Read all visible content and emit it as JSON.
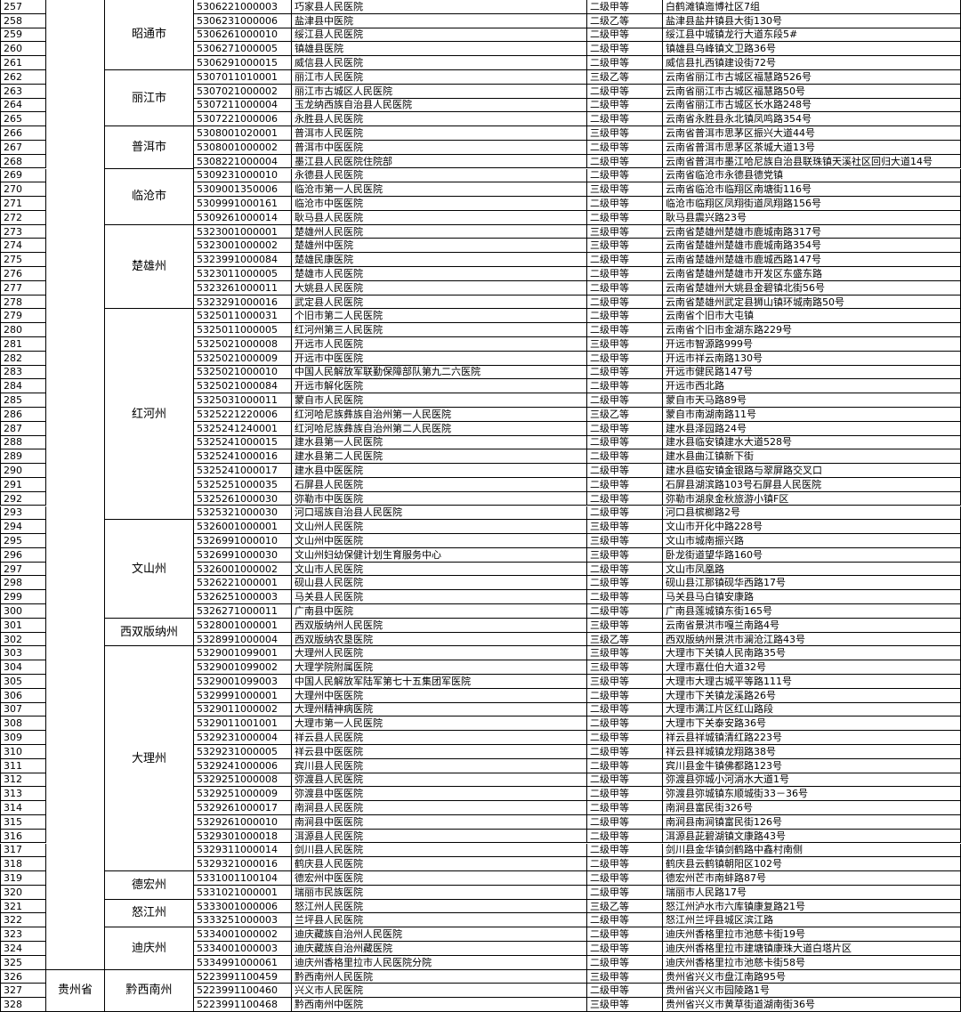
{
  "groups": [
    {
      "city": "昭通市",
      "rows": [
        [
          "257",
          "5306221000003",
          "巧家县人民医院",
          "二级甲等",
          "白鹤滩镇迤博社区7组"
        ],
        [
          "258",
          "5306231000006",
          "盐津县中医院",
          "二级乙等",
          "盐津县盐井镇县大街130号"
        ],
        [
          "259",
          "5306261000010",
          "绥江县人民医院",
          "二级甲等",
          "绥江县中城镇龙行大道东段5#"
        ],
        [
          "260",
          "5306271000005",
          "镇雄县医院",
          "二级甲等",
          "镇雄县乌峰镇文卫路36号"
        ],
        [
          "261",
          "5306291000015",
          "威信县人民医院",
          "二级甲等",
          "威信县扎西镇建设街72号"
        ]
      ]
    },
    {
      "city": "丽江市",
      "rows": [
        [
          "262",
          "5307011010001",
          "丽江市人民医院",
          "三级乙等",
          "云南省丽江市古城区福慧路526号"
        ],
        [
          "263",
          "5307021000002",
          "丽江市古城区人民医院",
          "二级甲等",
          "云南省丽江市古城区福慧路50号"
        ],
        [
          "264",
          "5307211000004",
          "玉龙纳西族自治县人民医院",
          "二级甲等",
          "云南省丽江市古城区长水路248号"
        ],
        [
          "265",
          "5307221000006",
          "永胜县人民医院",
          "二级甲等",
          "云南省永胜县永北镇凤鸣路354号"
        ]
      ]
    },
    {
      "city": "普洱市",
      "rows": [
        [
          "266",
          "5308001020001",
          "普洱市人民医院",
          "三级甲等",
          "云南省普洱市思茅区振兴大道44号"
        ],
        [
          "267",
          "5308001000002",
          "普洱市中医医院",
          "二级甲等",
          "云南省普洱市思茅区茶城大道13号"
        ],
        [
          "268",
          "5308221000004",
          "墨江县人民医院住院部",
          "二级甲等",
          "云南省普洱市墨江哈尼族自治县联珠镇天溪社区回归大道14号"
        ]
      ]
    },
    {
      "city": "临沧市",
      "rows": [
        [
          "269",
          "5309231000010",
          "永德县人民医院",
          "二级甲等",
          "云南省临沧市永德县德党镇"
        ],
        [
          "270",
          "5309001350006",
          "临沧市第一人民医院",
          "三级甲等",
          "云南省临沧市临翔区南塘街116号"
        ],
        [
          "271",
          "5309991000161",
          "临沧市中医医院",
          "二级甲等",
          "临沧市临翔区凤翔街道凤翔路156号"
        ],
        [
          "272",
          "5309261000014",
          "耿马县人民医院",
          "二级甲等",
          "耿马县震兴路23号"
        ]
      ]
    },
    {
      "city": "楚雄州",
      "rows": [
        [
          "273",
          "5323001000001",
          "楚雄州人民医院",
          "三级甲等",
          "云南省楚雄州楚雄市鹿城南路317号"
        ],
        [
          "274",
          "5323001000002",
          "楚雄州中医院",
          "三级甲等",
          "云南省楚雄州楚雄市鹿城南路354号"
        ],
        [
          "275",
          "5323991000084",
          "楚雄民康医院",
          "二级甲等",
          "云南省楚雄州楚雄市鹿城西路147号"
        ],
        [
          "276",
          "5323011000005",
          "楚雄市人民医院",
          "二级甲等",
          "云南省楚雄州楚雄市开发区东盛东路"
        ],
        [
          "277",
          "5323261000011",
          "大姚县人民医院",
          "二级甲等",
          "云南省楚雄州大姚县金碧镇北街56号"
        ],
        [
          "278",
          "5323291000016",
          "武定县人民医院",
          "二级甲等",
          "云南省楚雄州武定县狮山镇环城南路50号"
        ]
      ]
    },
    {
      "city": "红河州",
      "rows": [
        [
          "279",
          "5325011000031",
          "个旧市第二人民医院",
          "二级甲等",
          "云南省个旧市大屯镇"
        ],
        [
          "280",
          "5325011000005",
          "红河州第三人民医院",
          "二级甲等",
          "云南省个旧市金湖东路229号"
        ],
        [
          "281",
          "5325021000008",
          "开远市人民医院",
          "三级甲等",
          "开远市智源路999号"
        ],
        [
          "282",
          "5325021000009",
          "开远市中医医院",
          "二级甲等",
          "开远市祥云南路130号"
        ],
        [
          "283",
          "5325021000010",
          "中国人民解放军联勤保障部队第九二六医院",
          "二级甲等",
          "开远市健民路147号"
        ],
        [
          "284",
          "5325021000084",
          "开远市解化医院",
          "二级甲等",
          "开远市西北路"
        ],
        [
          "285",
          "5325031000011",
          "蒙自市人民医院",
          "二级甲等",
          "蒙自市天马路89号"
        ],
        [
          "286",
          "5325221220006",
          "红河哈尼族彝族自治州第一人民医院",
          "三级乙等",
          "蒙自市南湖南路11号"
        ],
        [
          "287",
          "5325241240001",
          "红河哈尼族彝族自治州第二人民医院",
          "二级甲等",
          "建水县泽园路24号"
        ],
        [
          "288",
          "5325241000015",
          "建水县第一人民医院",
          "二级甲等",
          "建水县临安镇建水大道528号"
        ],
        [
          "289",
          "5325241000016",
          "建水县第二人民医院",
          "二级甲等",
          "建水县曲江镇新下街"
        ],
        [
          "290",
          "5325241000017",
          "建水县中医医院",
          "二级甲等",
          "建水县临安镇金银路与翠屏路交叉口"
        ],
        [
          "291",
          "5325251000035",
          "石屏县人民医院",
          "二级甲等",
          "石屏县湖滨路103号石屏县人民医院"
        ],
        [
          "292",
          "5325261000030",
          "弥勒市中医医院",
          "二级甲等",
          "弥勒市湖泉金秋旅游小镇F区"
        ],
        [
          "293",
          "5325321000030",
          "河口瑶族自治县人民医院",
          "二级甲等",
          "河口县槟榔路2号"
        ]
      ]
    },
    {
      "city": "文山州",
      "rows": [
        [
          "294",
          "5326001000001",
          "文山州人民医院",
          "三级甲等",
          "文山市开化中路228号"
        ],
        [
          "295",
          "5326991000010",
          "文山州中医医院",
          "三级甲等",
          "文山市城南振兴路"
        ],
        [
          "296",
          "5326991000030",
          "文山州妇幼保健计划生育服务中心",
          "三级甲等",
          "卧龙街道望华路160号"
        ],
        [
          "297",
          "5326001000002",
          "文山市人民医院",
          "二级甲等",
          "文山市凤凰路"
        ],
        [
          "298",
          "5326221000001",
          "砚山县人民医院",
          "二级甲等",
          "砚山县江那镇砚华西路17号"
        ],
        [
          "299",
          "5326251000003",
          "马关县人民医院",
          "二级甲等",
          "马关县马白镇安康路"
        ],
        [
          "300",
          "5326271000011",
          "广南县中医院",
          "二级甲等",
          "广南县莲城镇东街165号"
        ]
      ]
    },
    {
      "city": "西双版纳州",
      "rows": [
        [
          "301",
          "5328001000001",
          "西双版纳州人民医院",
          "三级甲等",
          "云南省景洪市嘎兰南路4号"
        ],
        [
          "302",
          "5328991000004",
          "西双版纳农垦医院",
          "三级乙等",
          "西双版纳州景洪市澜沧江路43号"
        ]
      ]
    },
    {
      "city": "大理州",
      "rows": [
        [
          "303",
          "5329001099001",
          "大理州人民医院",
          "三级甲等",
          "大理市下关镇人民南路35号"
        ],
        [
          "304",
          "5329001099002",
          "大理学院附属医院",
          "三级甲等",
          "大理市嘉仕伯大道32号"
        ],
        [
          "305",
          "5329001099003",
          "中国人民解放军陆军第七十五集团军医院",
          "三级甲等",
          "大理市大理古城平等路111号"
        ],
        [
          "306",
          "5329991000001",
          "大理州中医医院",
          "二级甲等",
          "大理市下关镇龙溪路26号"
        ],
        [
          "307",
          "5329011000002",
          "大理州精神病医院",
          "二级甲等",
          "大理市满江片区红山路段"
        ],
        [
          "308",
          "5329011001001",
          "大理市第一人民医院",
          "二级甲等",
          "大理市下关泰安路36号"
        ],
        [
          "309",
          "5329231000004",
          "祥云县人民医院",
          "二级甲等",
          "祥云县祥城镇清红路223号"
        ],
        [
          "310",
          "5329231000005",
          "祥云县中医医院",
          "二级甲等",
          "祥云县祥城镇龙翔路38号"
        ],
        [
          "311",
          "5329241000006",
          "宾川县人民医院",
          "二级甲等",
          "宾川县金牛镇佛都路123号"
        ],
        [
          "312",
          "5329251000008",
          "弥渡县人民医院",
          "二级甲等",
          "弥渡县弥城小河淌水大道1号"
        ],
        [
          "313",
          "5329251000009",
          "弥渡县中医医院",
          "二级甲等",
          "弥渡县弥城镇东顺城街33－36号"
        ],
        [
          "314",
          "5329261000017",
          "南涧县人民医院",
          "二级甲等",
          "南涧县富民街326号"
        ],
        [
          "315",
          "5329261000010",
          "南涧县中医医院",
          "二级甲等",
          "南涧县南涧镇富民街126号"
        ],
        [
          "316",
          "5329301000018",
          "洱源县人民医院",
          "二级甲等",
          "洱源县茈碧湖镇文康路43号"
        ],
        [
          "317",
          "5329311000014",
          "剑川县人民医院",
          "二级甲等",
          "剑川县金华镇剑鹤路中鑫村南侧"
        ],
        [
          "318",
          "5329321000016",
          "鹤庆县人民医院",
          "二级甲等",
          "鹤庆县云鹤镇朝阳区102号"
        ]
      ]
    },
    {
      "city": "德宏州",
      "rows": [
        [
          "319",
          "5331001100104",
          "德宏州中医医院",
          "二级甲等",
          "德宏州芒市南蚌路87号"
        ],
        [
          "320",
          "5331021000001",
          "瑞丽市民族医院",
          "二级甲等",
          "瑞丽市人民路17号"
        ]
      ]
    },
    {
      "city": "怒江州",
      "rows": [
        [
          "321",
          "5333001000006",
          "怒江州人民医院",
          "三级乙等",
          "怒江州泸水市六库镇康复路21号"
        ],
        [
          "322",
          "5333251000003",
          "兰坪县人民医院",
          "二级甲等",
          "怒江州兰坪县城区滨江路"
        ]
      ]
    },
    {
      "city": "迪庆州",
      "rows": [
        [
          "323",
          "5334001000002",
          "迪庆藏族自治州人民医院",
          "二级甲等",
          "迪庆州香格里拉市池慈卡街19号"
        ],
        [
          "324",
          "5334001000003",
          "迪庆藏族自治州藏医院",
          "二级甲等",
          "迪庆州香格里拉市建塘镇康珠大道白塔片区"
        ],
        [
          "325",
          "5334991000061",
          "迪庆州香格里拉市人民医院分院",
          "二级甲等",
          "迪庆州香格里拉市池慈卡街58号"
        ]
      ]
    },
    {
      "province": "贵州省",
      "city": "黔西南州",
      "rows": [
        [
          "326",
          "5223991100459",
          "黔西南州人民医院",
          "三级甲等",
          "贵州省兴义市盘江南路95号"
        ],
        [
          "327",
          "5223991100460",
          "兴义市人民医院",
          "二级甲等",
          "贵州省兴义市园陵路1号"
        ],
        [
          "328",
          "5223991100468",
          "黔西南州中医院",
          "三级甲等",
          "贵州省兴义市黄草街道湖南街36号"
        ]
      ]
    }
  ]
}
